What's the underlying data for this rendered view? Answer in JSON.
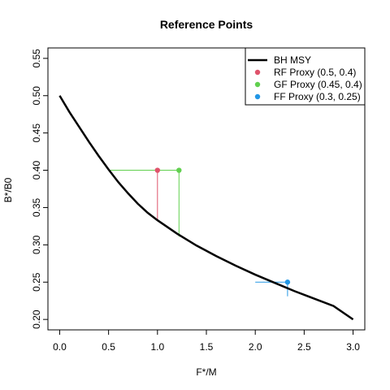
{
  "chart_data": {
    "type": "line",
    "title": "Reference Points",
    "xlabel": "F*/M",
    "ylabel": "B*/B0",
    "xlim": [
      0,
      3
    ],
    "ylim": [
      0.2,
      0.55
    ],
    "x_ticks": [
      "0.0",
      "0.5",
      "1.0",
      "1.5",
      "2.0",
      "2.5",
      "3.0"
    ],
    "y_ticks": [
      "0.20",
      "0.25",
      "0.30",
      "0.35",
      "0.40",
      "0.45",
      "0.50",
      "0.55"
    ],
    "curve": {
      "name": "BH MSY",
      "color": "#000000",
      "x": [
        0,
        0.1,
        0.2,
        0.3,
        0.4,
        0.5,
        0.6,
        0.7,
        0.8,
        0.9,
        1.0,
        1.2,
        1.4,
        1.6,
        1.8,
        2.0,
        2.2,
        2.4,
        2.6,
        2.8,
        3.0
      ],
      "y": [
        0.5,
        0.478,
        0.458,
        0.438,
        0.419,
        0.401,
        0.384,
        0.369,
        0.355,
        0.343,
        0.333,
        0.315,
        0.299,
        0.285,
        0.272,
        0.26,
        0.249,
        0.238,
        0.228,
        0.218,
        0.2
      ]
    },
    "points": [
      {
        "name": "RF Proxy (0.5, 0.4)",
        "color": "#DF536B",
        "x": 1.0,
        "y": 0.4,
        "hline_x0": 0.5,
        "vline_y0": 0.333
      },
      {
        "name": "GF Proxy (0.45, 0.4)",
        "color": "#61D04F",
        "x": 1.22,
        "y": 0.4,
        "hline_x0": 0.5,
        "vline_y0": 0.311
      },
      {
        "name": "FF Proxy (0.3, 0.25)",
        "color": "#2297E6",
        "x": 2.33,
        "y": 0.25,
        "hline_x0": 2.0,
        "vline_y0": 0.231
      }
    ],
    "legend_position": "top-right",
    "grid": false
  }
}
